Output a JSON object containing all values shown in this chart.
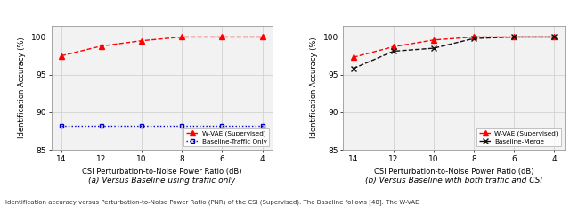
{
  "x": [
    14,
    12,
    10,
    8,
    6,
    4
  ],
  "plot_a": {
    "wvae": [
      97.5,
      98.8,
      99.5,
      100.0,
      100.0,
      100.0
    ],
    "baseline": [
      88.2,
      88.2,
      88.2,
      88.2,
      88.2,
      88.2
    ],
    "subtitle": "(a) Versus Baseline using traffic only",
    "legend1": "W-VAE (Supervised)",
    "legend2": "Baseline-Traffic Only"
  },
  "plot_b": {
    "wvae": [
      97.3,
      98.7,
      99.6,
      100.0,
      100.0,
      100.0
    ],
    "baseline": [
      95.8,
      98.1,
      98.5,
      99.8,
      100.0,
      100.0
    ],
    "subtitle": "(b) Versus Baseline with both traffic and CSI",
    "legend1": "W-VAE (Supervised)",
    "legend2": "Baseline-Merge"
  },
  "xlabel": "CSI Perturbation-to-Noise Power Ratio (dB)",
  "ylabel": "Identification Accuracy (%)",
  "ylim": [
    85,
    101.5
  ],
  "yticks": [
    85,
    90,
    95,
    100
  ],
  "xlim_left": 14.5,
  "xlim_right": 3.5,
  "color_red": "#FF0000",
  "color_blue": "#0000CC",
  "color_black": "#111111",
  "bg_color": "#F2F2F2",
  "caption": "Identification accuracy versus Perturbation-to-Noise Power Ratio (PNR) of the CSI (Supervised). The Baseline follows [48]. The W-VAE"
}
